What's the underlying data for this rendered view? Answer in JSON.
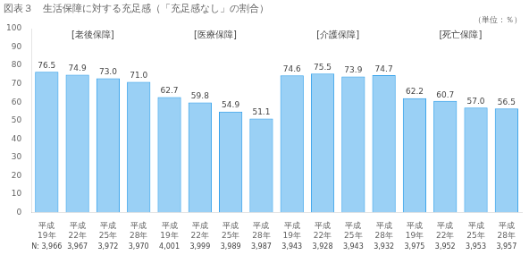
{
  "chart_data": {
    "type": "bar",
    "title": "図表３　生活保障に対する充足感（「充足感なし」の割合）",
    "annotations": [
      "（単位：％）"
    ],
    "group_labels": [
      "[老後保障]",
      "[医療保障]",
      "[介護保障]",
      "[死亡保障]"
    ],
    "categories": [
      "平成\n19年",
      "平成\n22年",
      "平成\n25年",
      "平成\n28年",
      "平成\n19年",
      "平成\n22年",
      "平成\n25年",
      "平成\n28年",
      "平成\n19年",
      "平成\n22年",
      "平成\n25年",
      "平成\n28年",
      "平成\n19年",
      "平成\n22年",
      "平成\n25年",
      "平成\n28年"
    ],
    "values": [
      76.5,
      74.9,
      73.0,
      71.0,
      62.7,
      59.8,
      54.9,
      51.1,
      74.6,
      75.5,
      73.9,
      74.7,
      62.2,
      60.7,
      57.0,
      56.5
    ],
    "value_labels": [
      "76.5",
      "74.9",
      "73.0",
      "71.0",
      "62.7",
      "59.8",
      "54.9",
      "51.1",
      "74.6",
      "75.5",
      "73.9",
      "74.7",
      "62.2",
      "60.7",
      "57.0",
      "56.5"
    ],
    "n_labels": [
      "N: 3,966",
      "3,967",
      "3,972",
      "3,970",
      "4,001",
      "3,999",
      "3,989",
      "3,987",
      "3,943",
      "3,928",
      "3,943",
      "3,932",
      "3,975",
      "3,952",
      "3,953",
      "3,957"
    ],
    "data_labels": true,
    "ylim": [
      0,
      100
    ],
    "yticks": [
      0,
      10,
      20,
      30,
      40,
      50,
      60,
      70,
      80,
      90,
      100
    ],
    "grid": false
  }
}
